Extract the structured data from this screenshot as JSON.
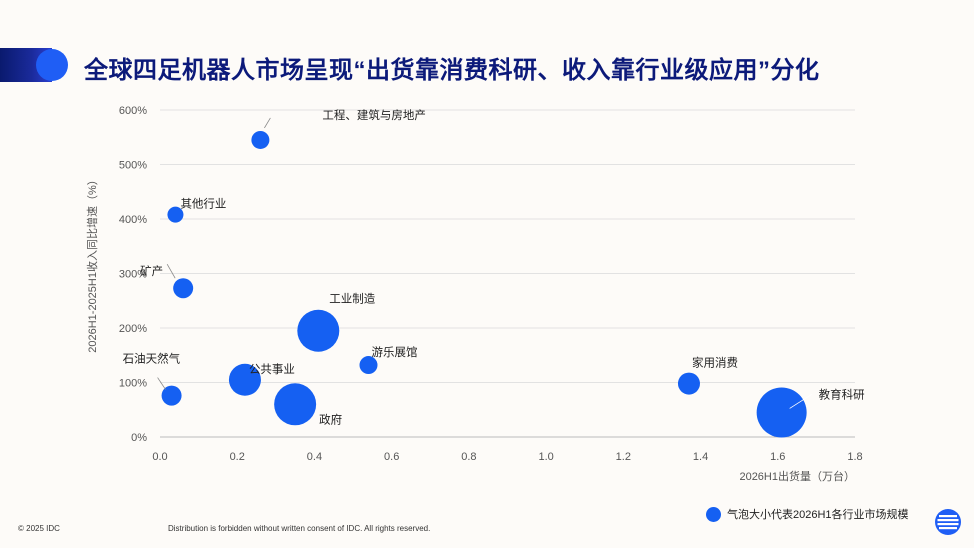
{
  "title": "全球四足机器人市场呈现“出货靠消费科研、收入靠行业级应用”分化",
  "footer": {
    "copyright": "© 2025 IDC",
    "disclaimer": "Distribution is forbidden without written consent of IDC. All rights reserved."
  },
  "legend": {
    "label": "气泡大小代表2026H1各行业市场规模"
  },
  "colors": {
    "bubble": "#1560f2",
    "title": "#0c1a7a",
    "banner": "#0a1a6e"
  },
  "chart_data": {
    "type": "bubble",
    "xlabel": "2026H1出货量（万台）",
    "ylabel": "2026H1-2025H1收入同比增速（%）",
    "xlim": [
      0,
      1.8
    ],
    "ylim": [
      0,
      600
    ],
    "xticks": [
      "0.0",
      "0.2",
      "0.4",
      "0.6",
      "0.8",
      "1.0",
      "1.2",
      "1.4",
      "1.6",
      "1.8"
    ],
    "yticks": [
      "0%",
      "100%",
      "200%",
      "300%",
      "400%",
      "500%",
      "600%"
    ],
    "grid": "horizontal",
    "points": [
      {
        "label": "工程、建筑与房地产",
        "x": 0.26,
        "y": 545,
        "size": 9
      },
      {
        "label": "其他行业",
        "x": 0.04,
        "y": 408,
        "size": 8
      },
      {
        "label": "矿产",
        "x": 0.06,
        "y": 273,
        "size": 10
      },
      {
        "label": "工业制造",
        "x": 0.41,
        "y": 195,
        "size": 21
      },
      {
        "label": "游乐展馆",
        "x": 0.54,
        "y": 132,
        "size": 9
      },
      {
        "label": "石油天然气",
        "x": 0.03,
        "y": 76,
        "size": 10
      },
      {
        "label": "公共事业",
        "x": 0.22,
        "y": 105,
        "size": 16
      },
      {
        "label": "政府",
        "x": 0.35,
        "y": 60,
        "size": 21
      },
      {
        "label": "家用消费",
        "x": 1.37,
        "y": 98,
        "size": 11
      },
      {
        "label": "教育科研",
        "x": 1.61,
        "y": 45,
        "size": 25
      }
    ]
  }
}
